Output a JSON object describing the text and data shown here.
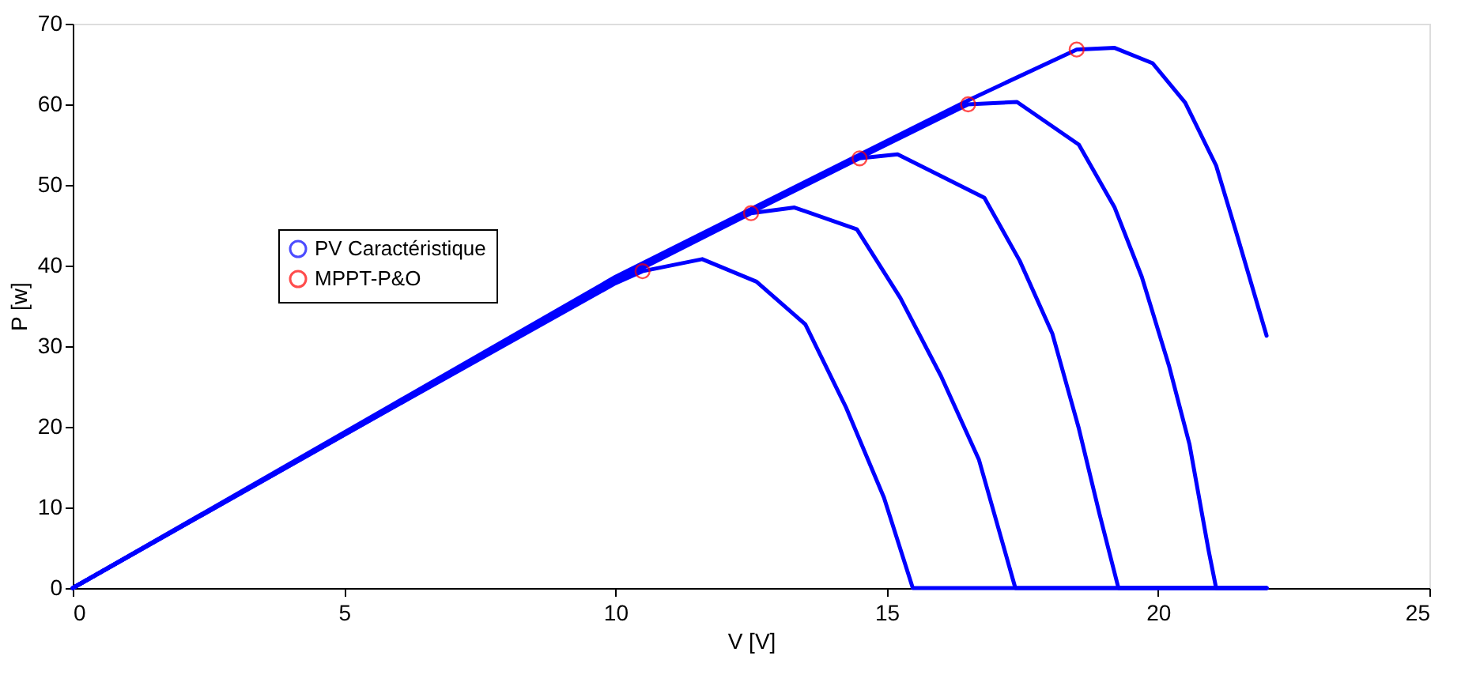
{
  "chart_data": {
    "type": "line",
    "xlabel": "V [V]",
    "ylabel": "P [w]",
    "xlim": [
      0,
      25
    ],
    "xticks": [
      0,
      5,
      10,
      15,
      20,
      25
    ],
    "ylim": [
      0,
      70
    ],
    "yticks": [
      0,
      10,
      20,
      30,
      40,
      50,
      60,
      70
    ],
    "grid": false,
    "legend": "top left",
    "line_style": "solid",
    "series": [
      {
        "name": "PV Caractéristique",
        "color": "#0000ff",
        "x": [
          0,
          5,
          10,
          10.5,
          11.6,
          12.6,
          13.5,
          14.25,
          14.95,
          15.48,
          22
        ],
        "values": [
          0,
          19,
          37.8,
          39.3,
          40.8,
          38,
          32.7,
          22.4,
          11.2,
          0,
          0
        ]
      },
      {
        "color": "#0000ff",
        "x": [
          0,
          5,
          10,
          12.5,
          13.3,
          14.45,
          15.25,
          16.0,
          16.7,
          17.37,
          22
        ],
        "values": [
          0,
          19,
          38,
          46.5,
          47.2,
          44.5,
          36,
          26.3,
          15.9,
          0,
          0
        ]
      },
      {
        "color": "#0000ff",
        "x": [
          0,
          5,
          10,
          14.5,
          15.2,
          16.8,
          17.45,
          18.05,
          18.54,
          18.92,
          19.27,
          22
        ],
        "values": [
          0,
          19.1,
          38.2,
          53.3,
          53.8,
          48.4,
          40.6,
          31.6,
          19.8,
          9.2,
          0,
          0
        ]
      },
      {
        "color": "#0000ff",
        "x": [
          0,
          5,
          10,
          16.5,
          17.4,
          18.54,
          19.2,
          19.7,
          20.2,
          20.58,
          20.93,
          21.07,
          22
        ],
        "values": [
          0,
          19.2,
          38.4,
          60,
          60.3,
          55,
          47.2,
          38.6,
          27.6,
          17.8,
          4.7,
          0,
          0
        ]
      },
      {
        "color": "#0000ff",
        "x": [
          0,
          5,
          10,
          16.5,
          18.5,
          19.2,
          19.9,
          20.5,
          21.07,
          21.45,
          22
        ],
        "values": [
          0,
          19.3,
          38.6,
          60.5,
          66.8,
          67,
          65.1,
          60.2,
          52.4,
          43.9,
          31.3
        ]
      },
      {
        "name": "MPPT-P&O",
        "type": "scatter",
        "marker": "circle",
        "color": "#ff0000",
        "x": [
          10.5,
          12.5,
          14.5,
          16.5,
          18.5
        ],
        "values": [
          39.3,
          46.5,
          53.3,
          60,
          66.8
        ]
      }
    ]
  }
}
